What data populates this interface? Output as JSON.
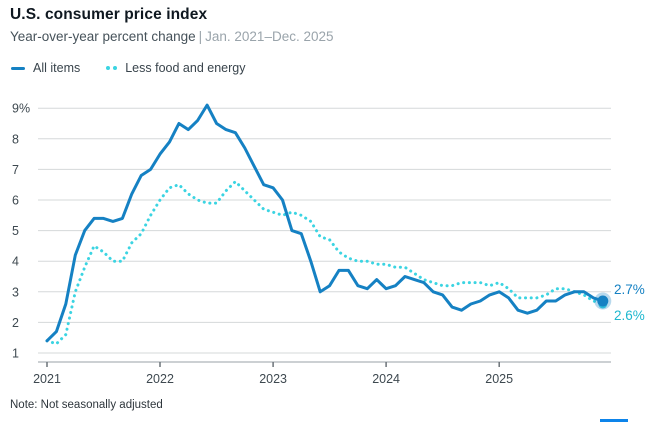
{
  "header": {
    "title": "U.S. consumer price index",
    "subtitle_main": "Year-over-year percent change",
    "subtitle_sep": "|",
    "subtitle_range": "Jan. 2021–Dec. 2025"
  },
  "legend": [
    {
      "label": "All items",
      "swatch": "solid-line",
      "color": "#1581c3"
    },
    {
      "label": "Less food and energy",
      "swatch": "dotted-line",
      "color": "#3bd4e2"
    }
  ],
  "note": "Note: Not seasonally adjusted",
  "footer": {
    "brand_color": "#0d84ea"
  },
  "chart_data": {
    "type": "line",
    "title": "U.S. consumer price index",
    "subtitle": "Year-over-year percent change | Jan. 2021–Dec. 2025",
    "x_unit": "month",
    "x_start": "2021-01",
    "x_end": "2025-12",
    "xticks": [
      "2021",
      "2022",
      "2023",
      "2024",
      "2025"
    ],
    "xtick_month_index": [
      0,
      12,
      24,
      36,
      48
    ],
    "yticks": [
      "9%",
      "8",
      "7",
      "6",
      "5",
      "4",
      "3",
      "2",
      "1"
    ],
    "ytick_values": [
      9,
      8,
      7,
      6,
      5,
      4,
      3,
      2,
      1
    ],
    "ylim": [
      1,
      9
    ],
    "grid": "horizontal",
    "legend_position": "top-left",
    "series": [
      {
        "name": "All items",
        "style": "solid",
        "color": "#1581c3",
        "end_label": "2.7%",
        "end_dot": true,
        "values": [
          1.4,
          1.7,
          2.6,
          4.2,
          5.0,
          5.4,
          5.4,
          5.3,
          5.4,
          6.2,
          6.8,
          7.0,
          7.5,
          7.9,
          8.5,
          8.3,
          8.6,
          9.1,
          8.5,
          8.3,
          8.2,
          7.7,
          7.1,
          6.5,
          6.4,
          6.0,
          5.0,
          4.9,
          4.0,
          3.0,
          3.2,
          3.7,
          3.7,
          3.2,
          3.1,
          3.4,
          3.1,
          3.2,
          3.5,
          3.4,
          3.3,
          3.0,
          2.9,
          2.5,
          2.4,
          2.6,
          2.7,
          2.9,
          3.0,
          2.8,
          2.4,
          2.3,
          2.4,
          2.7,
          2.7,
          2.9,
          3.0,
          3.0,
          2.8,
          2.7
        ]
      },
      {
        "name": "Less food and energy",
        "style": "dotted",
        "color": "#3bd4e2",
        "end_label": "2.6%",
        "label_color": "#1eb8cf",
        "end_dot": false,
        "values": [
          1.4,
          1.3,
          1.6,
          3.0,
          3.8,
          4.5,
          4.3,
          4.0,
          4.0,
          4.6,
          4.9,
          5.5,
          6.0,
          6.4,
          6.5,
          6.2,
          6.0,
          5.9,
          5.9,
          6.3,
          6.6,
          6.3,
          6.0,
          5.7,
          5.6,
          5.5,
          5.6,
          5.5,
          5.3,
          4.8,
          4.7,
          4.3,
          4.1,
          4.0,
          4.0,
          3.9,
          3.9,
          3.8,
          3.8,
          3.6,
          3.4,
          3.3,
          3.2,
          3.2,
          3.3,
          3.3,
          3.3,
          3.2,
          3.3,
          3.1,
          2.8,
          2.8,
          2.8,
          2.9,
          3.1,
          3.1,
          3.0,
          2.9,
          2.7,
          2.6
        ]
      }
    ]
  }
}
